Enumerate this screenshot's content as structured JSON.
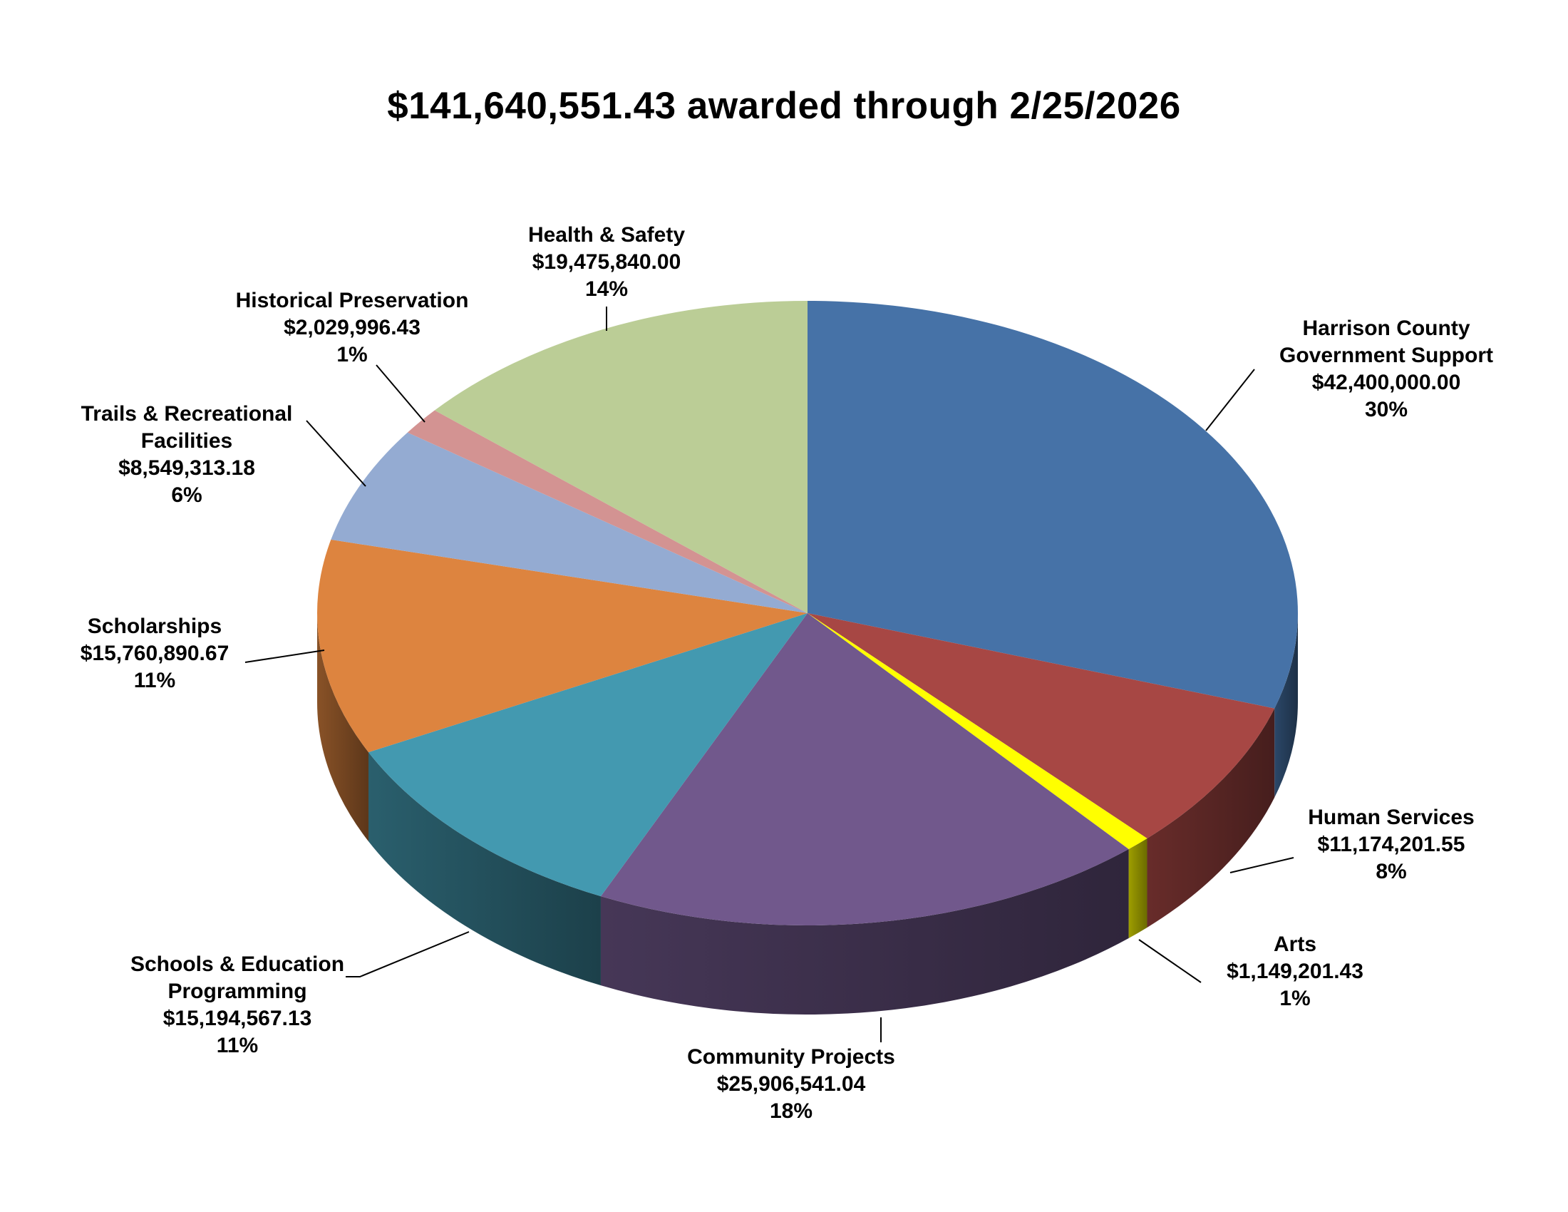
{
  "chart_data": {
    "type": "pie",
    "title": "$141,640,551.43 awarded through 2/25/2026",
    "three_d": true,
    "slices": [
      {
        "name_lines": [
          "Harrison County",
          "Government Support"
        ],
        "amount": "$42,400,000.00",
        "percent": "30%",
        "value": 42400000.0,
        "color": "#4672a7"
      },
      {
        "name_lines": [
          "Human Services"
        ],
        "amount": "$11,174,201.55",
        "percent": "8%",
        "value": 11174201.55,
        "color": "#a74744"
      },
      {
        "name_lines": [
          "Arts"
        ],
        "amount": "$1,149,201.43",
        "percent": "1%",
        "value": 1149201.43,
        "color": "#ffff00"
      },
      {
        "name_lines": [
          "Community Projects"
        ],
        "amount": "$25,906,541.04",
        "percent": "18%",
        "value": 25906541.04,
        "color": "#71588c"
      },
      {
        "name_lines": [
          "Schools & Education",
          "Programming"
        ],
        "amount": "$15,194,567.13",
        "percent": "11%",
        "value": 15194567.13,
        "color": "#4399b0"
      },
      {
        "name_lines": [
          "Scholarships"
        ],
        "amount": "$15,760,890.67",
        "percent": "11%",
        "value": 15760890.67,
        "color": "#dd843f"
      },
      {
        "name_lines": [
          "Trails & Recreational",
          "Facilities"
        ],
        "amount": "$8,549,313.18",
        "percent": "6%",
        "value": 8549313.18,
        "color": "#94abd2"
      },
      {
        "name_lines": [
          "Historical Preservation"
        ],
        "amount": "$2,029,996.43",
        "percent": "1%",
        "value": 2029996.43,
        "color": "#d39392"
      },
      {
        "name_lines": [
          "Health & Safety"
        ],
        "amount": "$19,475,840.00",
        "percent": "14%",
        "value": 19475840.0,
        "color": "#bbcd96"
      }
    ]
  }
}
